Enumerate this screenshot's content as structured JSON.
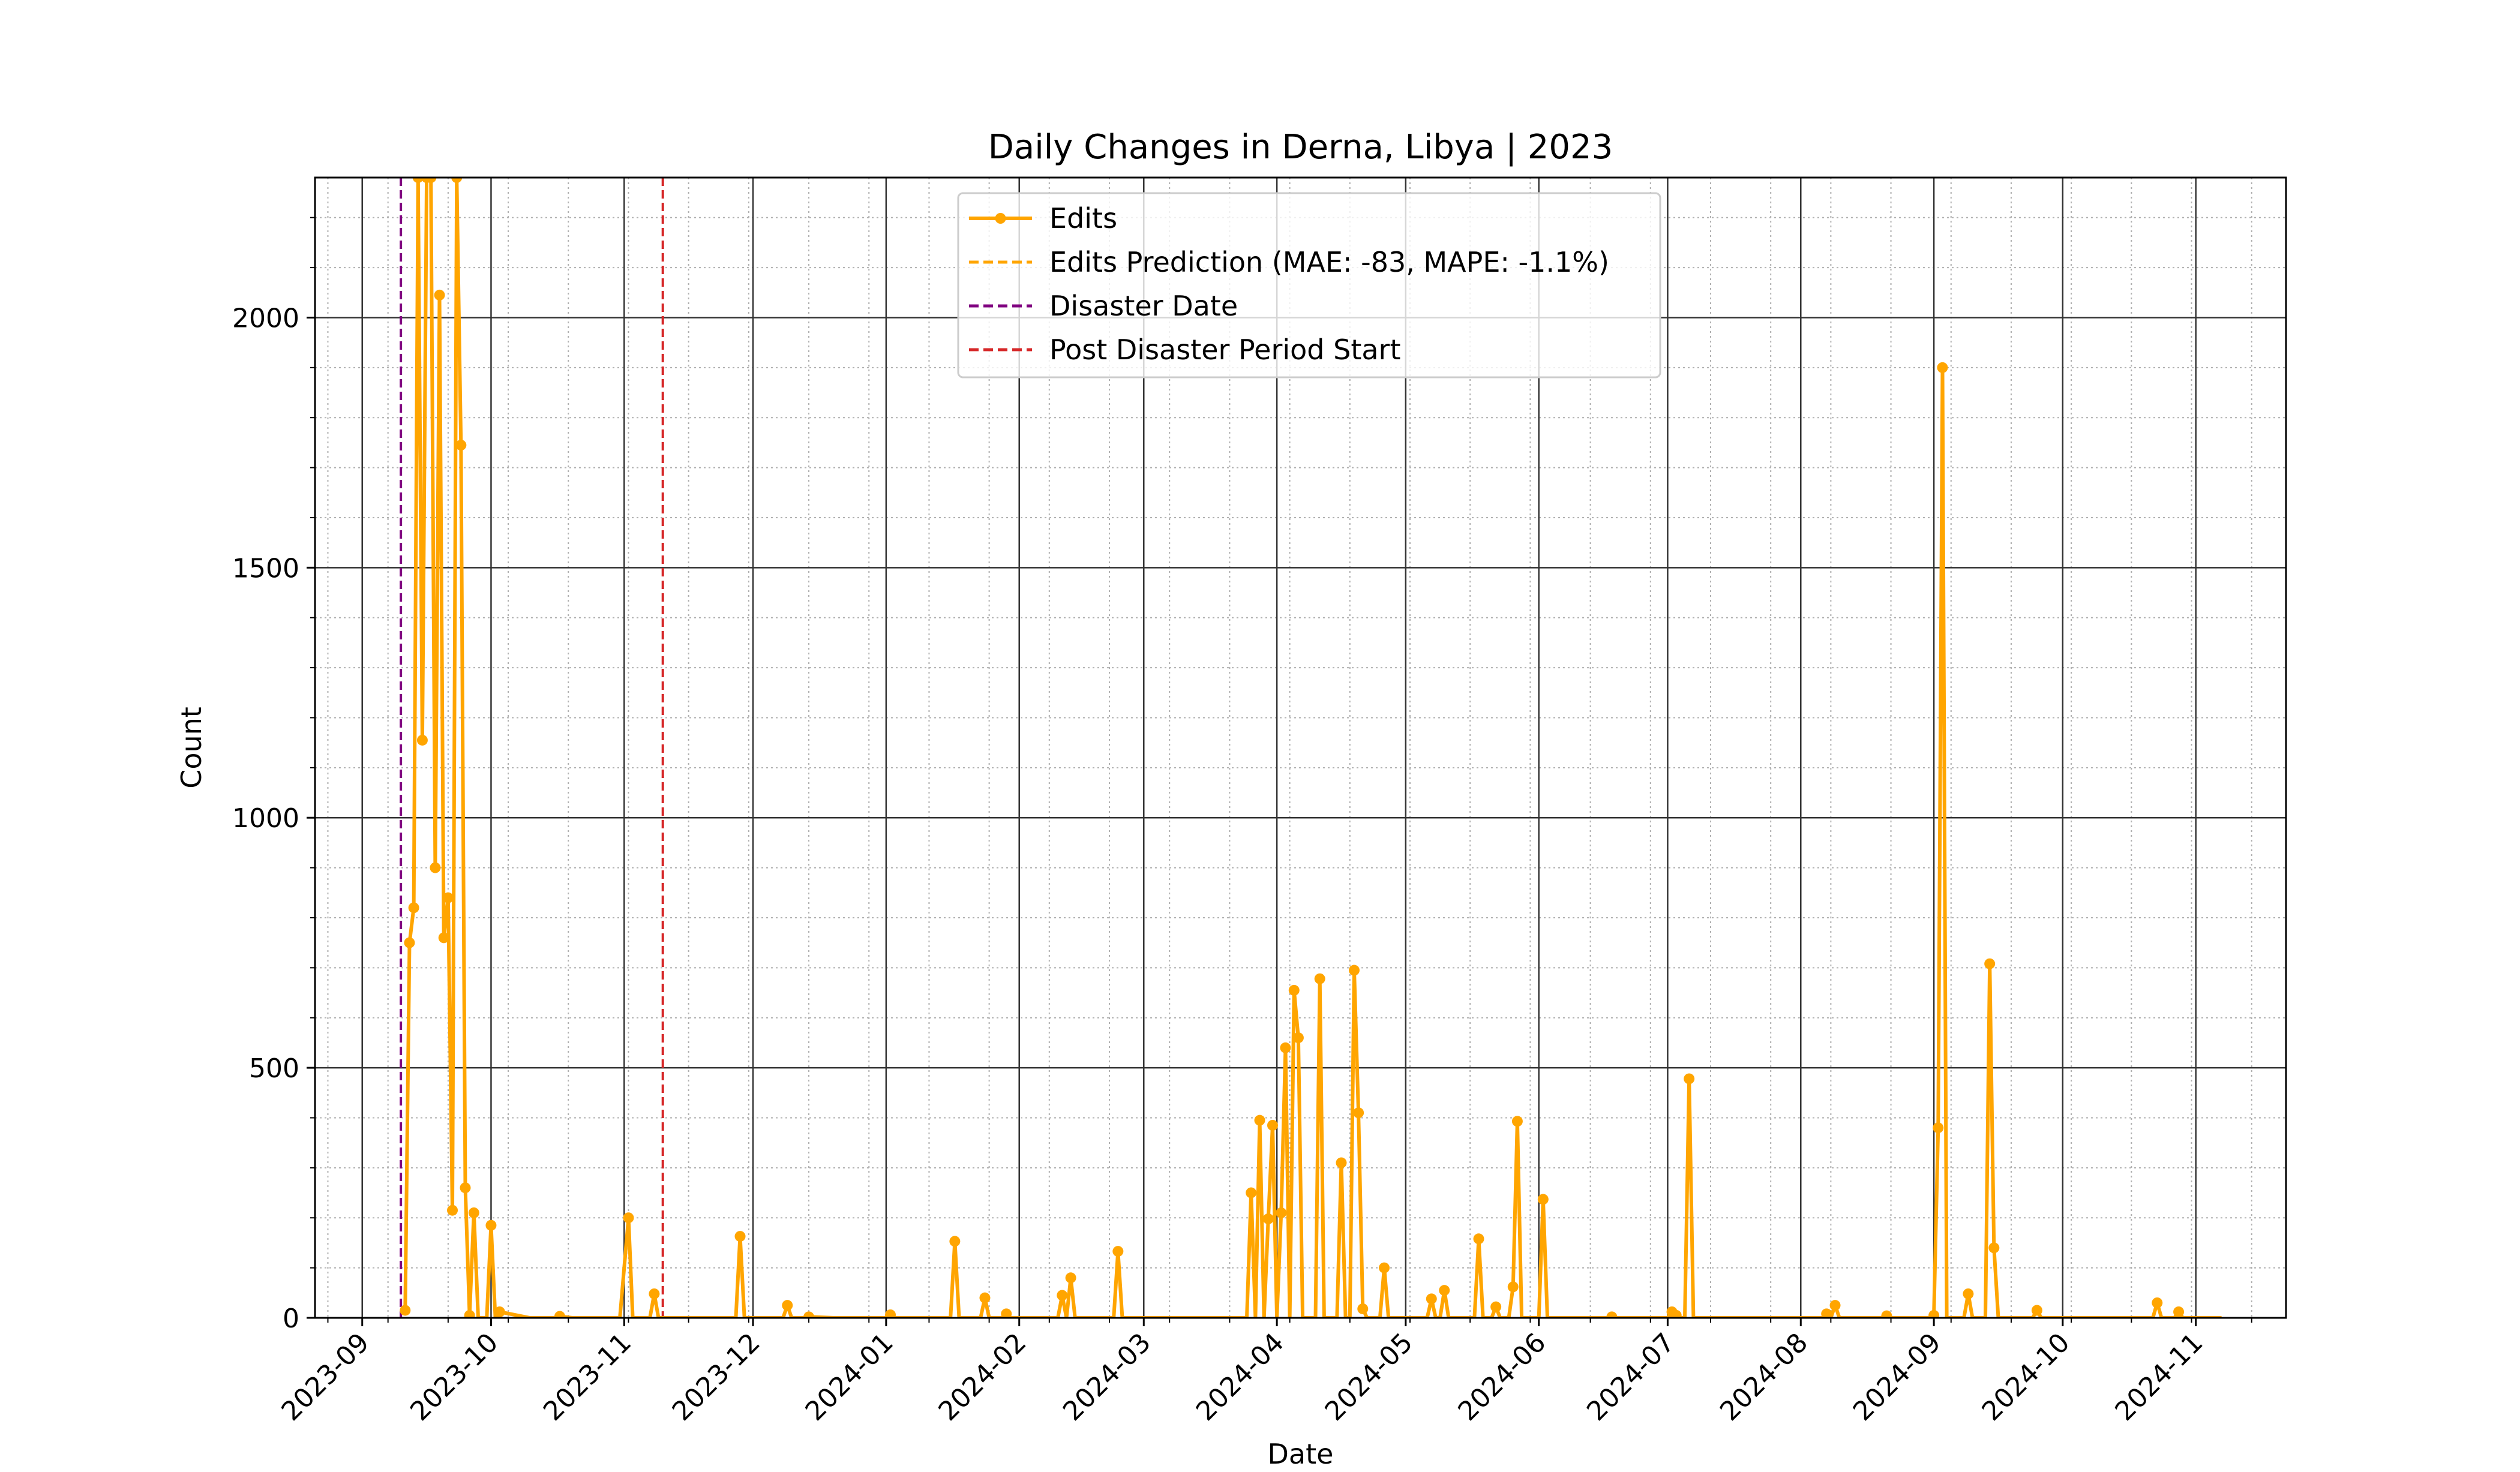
{
  "chart_data": {
    "type": "line",
    "title": "Daily Changes in Derna, Libya | 2023",
    "xlabel": "Date",
    "ylabel": "Count",
    "xlim": [
      "2023-08-21",
      "2024-11-22"
    ],
    "ylim": [
      0,
      2280
    ],
    "x_ticks": [
      "2023-09-01",
      "2023-10-01",
      "2023-11-01",
      "2023-12-01",
      "2024-01-01",
      "2024-02-01",
      "2024-03-01",
      "2024-04-01",
      "2024-05-01",
      "2024-06-01",
      "2024-07-01",
      "2024-08-01",
      "2024-09-01",
      "2024-10-01",
      "2024-11-01"
    ],
    "x_tick_labels": [
      "2023-09",
      "2023-10",
      "2023-11",
      "2023-12",
      "2024-01",
      "2024-02",
      "2024-03",
      "2024-04",
      "2024-05",
      "2024-06",
      "2024-07",
      "2024-08",
      "2024-09",
      "2024-10",
      "2024-11"
    ],
    "y_ticks": [
      0,
      500,
      1000,
      1500,
      2000
    ],
    "y_tick_labels": [
      "0",
      "500",
      "1000",
      "1500",
      "2000"
    ],
    "grid": true,
    "legend_position": "top-center",
    "legend": [
      {
        "label": "Edits",
        "style": "solid-marker",
        "color": "#FFA500"
      },
      {
        "label": "Edits Prediction (MAE: -83, MAPE: -1.1%)",
        "style": "dashed",
        "color": "#FFA500"
      },
      {
        "label": "Disaster Date",
        "style": "dashed",
        "color": "#800080"
      },
      {
        "label": "Post Disaster Period Start",
        "style": "dashed",
        "color": "#D62728"
      }
    ],
    "vlines": [
      {
        "name": "Disaster Date",
        "x": "2023-09-10",
        "color": "#800080"
      },
      {
        "name": "Post Disaster Period Start",
        "x": "2023-11-10",
        "color": "#D62728"
      }
    ],
    "series": [
      {
        "name": "Edits",
        "color": "#FFA500",
        "points": [
          [
            "2023-09-11",
            15
          ],
          [
            "2023-09-12",
            750
          ],
          [
            "2023-09-13",
            820
          ],
          [
            "2023-09-14",
            2280
          ],
          [
            "2023-09-15",
            1155
          ],
          [
            "2023-09-16",
            2280
          ],
          [
            "2023-09-17",
            2280
          ],
          [
            "2023-09-18",
            900
          ],
          [
            "2023-09-19",
            2045
          ],
          [
            "2023-09-20",
            760
          ],
          [
            "2023-09-21",
            840
          ],
          [
            "2023-09-22",
            215
          ],
          [
            "2023-09-23",
            2280
          ],
          [
            "2023-09-24",
            1745
          ],
          [
            "2023-09-25",
            260
          ],
          [
            "2023-09-26",
            5
          ],
          [
            "2023-09-27",
            210
          ],
          [
            "2023-09-28",
            0
          ],
          [
            "2023-09-30",
            0
          ],
          [
            "2023-10-01",
            185
          ],
          [
            "2023-10-02",
            0
          ],
          [
            "2023-10-03",
            12
          ],
          [
            "2023-10-10",
            0
          ],
          [
            "2023-10-16",
            0
          ],
          [
            "2023-10-17",
            3
          ],
          [
            "2023-10-20",
            0
          ],
          [
            "2023-10-30",
            0
          ],
          [
            "2023-10-31",
            0
          ],
          [
            "2023-11-02",
            200
          ],
          [
            "2023-11-03",
            0
          ],
          [
            "2023-11-07",
            0
          ],
          [
            "2023-11-08",
            48
          ],
          [
            "2023-11-09",
            0
          ],
          [
            "2023-11-15",
            0
          ],
          [
            "2023-11-27",
            0
          ],
          [
            "2023-11-28",
            163
          ],
          [
            "2023-11-29",
            0
          ],
          [
            "2023-12-08",
            0
          ],
          [
            "2023-12-09",
            25
          ],
          [
            "2023-12-10",
            0
          ],
          [
            "2023-12-13",
            0
          ],
          [
            "2023-12-14",
            2
          ],
          [
            "2023-12-20",
            0
          ],
          [
            "2024-01-01",
            0
          ],
          [
            "2024-01-02",
            6
          ],
          [
            "2024-01-03",
            0
          ],
          [
            "2024-01-16",
            0
          ],
          [
            "2024-01-17",
            153
          ],
          [
            "2024-01-18",
            0
          ],
          [
            "2024-01-23",
            0
          ],
          [
            "2024-01-24",
            40
          ],
          [
            "2024-01-25",
            0
          ],
          [
            "2024-01-28",
            0
          ],
          [
            "2024-01-29",
            8
          ],
          [
            "2024-01-30",
            0
          ],
          [
            "2024-02-10",
            0
          ],
          [
            "2024-02-11",
            45
          ],
          [
            "2024-02-12",
            0
          ],
          [
            "2024-02-13",
            80
          ],
          [
            "2024-02-14",
            0
          ],
          [
            "2024-02-23",
            0
          ],
          [
            "2024-02-24",
            133
          ],
          [
            "2024-02-25",
            0
          ],
          [
            "2024-03-25",
            0
          ],
          [
            "2024-03-26",
            250
          ],
          [
            "2024-03-27",
            0
          ],
          [
            "2024-03-28",
            395
          ],
          [
            "2024-03-29",
            0
          ],
          [
            "2024-03-30",
            198
          ],
          [
            "2024-03-31",
            385
          ],
          [
            "2024-04-01",
            0
          ],
          [
            "2024-04-02",
            210
          ],
          [
            "2024-04-03",
            540
          ],
          [
            "2024-04-04",
            0
          ],
          [
            "2024-04-05",
            655
          ],
          [
            "2024-04-06",
            560
          ],
          [
            "2024-04-07",
            0
          ],
          [
            "2024-04-10",
            0
          ],
          [
            "2024-04-11",
            678
          ],
          [
            "2024-04-12",
            0
          ],
          [
            "2024-04-15",
            0
          ],
          [
            "2024-04-16",
            310
          ],
          [
            "2024-04-17",
            0
          ],
          [
            "2024-04-18",
            0
          ],
          [
            "2024-04-19",
            695
          ],
          [
            "2024-04-20",
            410
          ],
          [
            "2024-04-21",
            18
          ],
          [
            "2024-04-22",
            0
          ],
          [
            "2024-04-25",
            0
          ],
          [
            "2024-04-26",
            100
          ],
          [
            "2024-04-27",
            0
          ],
          [
            "2024-05-06",
            0
          ],
          [
            "2024-05-07",
            38
          ],
          [
            "2024-05-08",
            0
          ],
          [
            "2024-05-09",
            0
          ],
          [
            "2024-05-10",
            55
          ],
          [
            "2024-05-11",
            0
          ],
          [
            "2024-05-17",
            0
          ],
          [
            "2024-05-18",
            158
          ],
          [
            "2024-05-19",
            0
          ],
          [
            "2024-05-21",
            0
          ],
          [
            "2024-05-22",
            22
          ],
          [
            "2024-05-23",
            0
          ],
          [
            "2024-05-25",
            0
          ],
          [
            "2024-05-26",
            62
          ],
          [
            "2024-05-27",
            393
          ],
          [
            "2024-05-28",
            0
          ],
          [
            "2024-06-01",
            0
          ],
          [
            "2024-06-02",
            237
          ],
          [
            "2024-06-03",
            0
          ],
          [
            "2024-06-17",
            0
          ],
          [
            "2024-06-18",
            2
          ],
          [
            "2024-06-19",
            0
          ],
          [
            "2024-07-01",
            0
          ],
          [
            "2024-07-02",
            12
          ],
          [
            "2024-07-03",
            5
          ],
          [
            "2024-07-04",
            0
          ],
          [
            "2024-07-05",
            0
          ],
          [
            "2024-07-06",
            478
          ],
          [
            "2024-07-07",
            0
          ],
          [
            "2024-08-06",
            0
          ],
          [
            "2024-08-07",
            8
          ],
          [
            "2024-08-08",
            0
          ],
          [
            "2024-08-09",
            25
          ],
          [
            "2024-08-10",
            0
          ],
          [
            "2024-08-20",
            0
          ],
          [
            "2024-08-21",
            4
          ],
          [
            "2024-08-22",
            0
          ],
          [
            "2024-08-31",
            0
          ],
          [
            "2024-09-01",
            5
          ],
          [
            "2024-09-02",
            380
          ],
          [
            "2024-09-03",
            1900
          ],
          [
            "2024-09-04",
            0
          ],
          [
            "2024-09-08",
            0
          ],
          [
            "2024-09-09",
            48
          ],
          [
            "2024-09-10",
            0
          ],
          [
            "2024-09-13",
            0
          ],
          [
            "2024-09-14",
            708
          ],
          [
            "2024-09-15",
            140
          ],
          [
            "2024-09-16",
            0
          ],
          [
            "2024-09-24",
            0
          ],
          [
            "2024-09-25",
            15
          ],
          [
            "2024-09-26",
            0
          ],
          [
            "2024-10-22",
            0
          ],
          [
            "2024-10-23",
            30
          ],
          [
            "2024-10-24",
            0
          ],
          [
            "2024-10-27",
            0
          ],
          [
            "2024-10-28",
            12
          ],
          [
            "2024-10-29",
            0
          ],
          [
            "2024-11-07",
            0
          ]
        ]
      }
    ]
  }
}
